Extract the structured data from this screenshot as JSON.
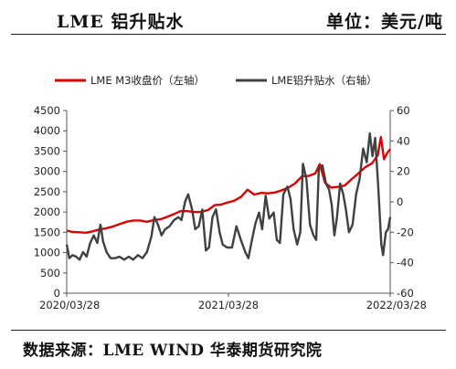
{
  "header": {
    "title": "LME 铝升贴水",
    "unit": "单位：美元/吨"
  },
  "footer": {
    "source": "数据来源：LME WIND  华泰期货研究院"
  },
  "chart_data": {
    "type": "line",
    "x_ticks": [
      "2020/03/28",
      "2021/03/28",
      "2022/03/28"
    ],
    "x_range": [
      "2020/03/28",
      "2022/03/28"
    ],
    "y_left": {
      "range": [
        0,
        4500
      ],
      "ticks": [
        0,
        500,
        1000,
        1500,
        2000,
        2500,
        3000,
        3500,
        4000,
        4500
      ]
    },
    "y_right": {
      "range": [
        -60,
        60
      ],
      "ticks": [
        -60,
        -40,
        -20,
        0,
        20,
        40,
        60
      ]
    },
    "legend_position": "top",
    "grid": false,
    "series": [
      {
        "name": "LME M3收盘价（左轴）",
        "axis": "left",
        "color": "#e00000",
        "points": [
          [
            "2020/03/28",
            1540
          ],
          [
            "2020/04/10",
            1510
          ],
          [
            "2020/04/25",
            1500
          ],
          [
            "2020/05/10",
            1490
          ],
          [
            "2020/05/25",
            1520
          ],
          [
            "2020/06/10",
            1570
          ],
          [
            "2020/06/25",
            1600
          ],
          [
            "2020/07/10",
            1640
          ],
          [
            "2020/07/25",
            1700
          ],
          [
            "2020/08/10",
            1760
          ],
          [
            "2020/08/25",
            1790
          ],
          [
            "2020/09/10",
            1790
          ],
          [
            "2020/09/25",
            1760
          ],
          [
            "2020/10/10",
            1800
          ],
          [
            "2020/10/25",
            1820
          ],
          [
            "2020/11/10",
            1880
          ],
          [
            "2020/11/25",
            1950
          ],
          [
            "2020/12/10",
            2020
          ],
          [
            "2020/12/25",
            2020
          ],
          [
            "2021/01/10",
            2000
          ],
          [
            "2021/01/25",
            2000
          ],
          [
            "2021/02/10",
            2050
          ],
          [
            "2021/02/25",
            2170
          ],
          [
            "2021/03/10",
            2180
          ],
          [
            "2021/03/25",
            2230
          ],
          [
            "2021/04/10",
            2280
          ],
          [
            "2021/04/25",
            2370
          ],
          [
            "2021/05/10",
            2550
          ],
          [
            "2021/05/25",
            2430
          ],
          [
            "2021/06/10",
            2470
          ],
          [
            "2021/06/25",
            2460
          ],
          [
            "2021/07/10",
            2480
          ],
          [
            "2021/07/25",
            2530
          ],
          [
            "2021/08/10",
            2600
          ],
          [
            "2021/08/25",
            2700
          ],
          [
            "2021/09/10",
            2880
          ],
          [
            "2021/09/25",
            2890
          ],
          [
            "2021/10/10",
            2950
          ],
          [
            "2021/10/20",
            3180
          ],
          [
            "2021/11/01",
            2720
          ],
          [
            "2021/11/15",
            2600
          ],
          [
            "2021/11/30",
            2620
          ],
          [
            "2021/12/15",
            2650
          ],
          [
            "2021/12/30",
            2800
          ],
          [
            "2022/01/15",
            2950
          ],
          [
            "2022/01/30",
            3100
          ],
          [
            "2022/02/15",
            3200
          ],
          [
            "2022/02/28",
            3400
          ],
          [
            "2022/03/07",
            3850
          ],
          [
            "2022/03/14",
            3300
          ],
          [
            "2022/03/21",
            3450
          ],
          [
            "2022/03/28",
            3550
          ]
        ]
      },
      {
        "name": "LME铝升贴水（右轴）",
        "axis": "right",
        "color": "#404040",
        "points": [
          [
            "2020/03/28",
            -28
          ],
          [
            "2020/04/03",
            -37
          ],
          [
            "2020/04/10",
            -35
          ],
          [
            "2020/04/18",
            -36
          ],
          [
            "2020/04/26",
            -38
          ],
          [
            "2020/05/04",
            -33
          ],
          [
            "2020/05/12",
            -36
          ],
          [
            "2020/05/20",
            -27
          ],
          [
            "2020/05/28",
            -22
          ],
          [
            "2020/06/05",
            -27
          ],
          [
            "2020/06/12",
            -15
          ],
          [
            "2020/06/18",
            -26
          ],
          [
            "2020/06/26",
            -33
          ],
          [
            "2020/07/05",
            -37
          ],
          [
            "2020/07/15",
            -37
          ],
          [
            "2020/07/25",
            -36
          ],
          [
            "2020/08/05",
            -38
          ],
          [
            "2020/08/15",
            -36
          ],
          [
            "2020/08/25",
            -38
          ],
          [
            "2020/09/05",
            -35
          ],
          [
            "2020/09/15",
            -37
          ],
          [
            "2020/09/25",
            -33
          ],
          [
            "2020/10/05",
            -23
          ],
          [
            "2020/10/12",
            -10
          ],
          [
            "2020/10/20",
            -15
          ],
          [
            "2020/10/28",
            -22
          ],
          [
            "2020/11/05",
            -18
          ],
          [
            "2020/11/15",
            -16
          ],
          [
            "2020/11/25",
            -12
          ],
          [
            "2020/12/05",
            -10
          ],
          [
            "2020/12/12",
            -12
          ],
          [
            "2020/12/20",
            0
          ],
          [
            "2020/12/27",
            5
          ],
          [
            "2021/01/05",
            -5
          ],
          [
            "2021/01/12",
            -18
          ],
          [
            "2021/01/20",
            -16
          ],
          [
            "2021/01/28",
            -5
          ],
          [
            "2021/02/05",
            -32
          ],
          [
            "2021/02/12",
            -30
          ],
          [
            "2021/02/20",
            -10
          ],
          [
            "2021/02/28",
            -5
          ],
          [
            "2021/03/08",
            -20
          ],
          [
            "2021/03/15",
            -28
          ],
          [
            "2021/03/25",
            -30
          ],
          [
            "2021/04/05",
            -30
          ],
          [
            "2021/04/15",
            -16
          ],
          [
            "2021/04/25",
            -25
          ],
          [
            "2021/05/05",
            -33
          ],
          [
            "2021/05/12",
            -37
          ],
          [
            "2021/05/20",
            -25
          ],
          [
            "2021/05/28",
            -14
          ],
          [
            "2021/06/05",
            -7
          ],
          [
            "2021/06/12",
            -18
          ],
          [
            "2021/06/20",
            4
          ],
          [
            "2021/06/28",
            -11
          ],
          [
            "2021/07/08",
            -7
          ],
          [
            "2021/07/15",
            -25
          ],
          [
            "2021/07/22",
            -27
          ],
          [
            "2021/07/30",
            5
          ],
          [
            "2021/08/08",
            10
          ],
          [
            "2021/08/15",
            2
          ],
          [
            "2021/08/22",
            -18
          ],
          [
            "2021/08/30",
            -28
          ],
          [
            "2021/09/06",
            -20
          ],
          [
            "2021/09/12",
            25
          ],
          [
            "2021/09/20",
            15
          ],
          [
            "2021/09/28",
            -15
          ],
          [
            "2021/10/06",
            -22
          ],
          [
            "2021/10/12",
            -25
          ],
          [
            "2021/10/18",
            22
          ],
          [
            "2021/10/26",
            24
          ],
          [
            "2021/11/03",
            12
          ],
          [
            "2021/11/10",
            8
          ],
          [
            "2021/11/16",
            -2
          ],
          [
            "2021/11/22",
            -22
          ],
          [
            "2021/11/28",
            -10
          ],
          [
            "2021/12/05",
            12
          ],
          [
            "2021/12/12",
            5
          ],
          [
            "2021/12/18",
            -5
          ],
          [
            "2021/12/25",
            -20
          ],
          [
            "2022/01/02",
            -15
          ],
          [
            "2022/01/10",
            5
          ],
          [
            "2022/01/18",
            15
          ],
          [
            "2022/01/26",
            35
          ],
          [
            "2022/02/03",
            26
          ],
          [
            "2022/02/10",
            45
          ],
          [
            "2022/02/16",
            30
          ],
          [
            "2022/02/22",
            42
          ],
          [
            "2022/03/01",
            10
          ],
          [
            "2022/03/08",
            -28
          ],
          [
            "2022/03/12",
            -35
          ],
          [
            "2022/03/18",
            -20
          ],
          [
            "2022/03/23",
            -18
          ],
          [
            "2022/03/28",
            -10
          ]
        ]
      }
    ]
  }
}
